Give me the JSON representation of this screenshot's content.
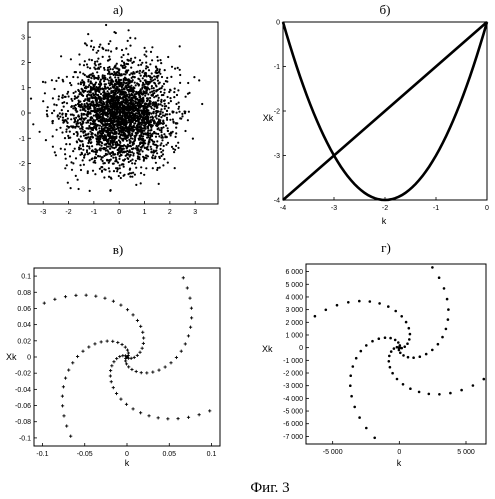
{
  "figure": {
    "caption": "Фиг. 3"
  },
  "chart_data": [
    {
      "id": "a",
      "panel_label": "а)",
      "type": "scatter",
      "xlim": [
        -3.6,
        3.9
      ],
      "ylim": [
        -3.6,
        3.6
      ],
      "xticks": [
        "-3",
        "-2",
        "-1",
        "0",
        "1",
        "2",
        "3"
      ],
      "xtick_values": [
        -3,
        -2,
        -1,
        0,
        1,
        2,
        3
      ],
      "yticks": [
        "3",
        "2",
        "1",
        "0",
        "-1",
        "-2",
        "-3"
      ],
      "ytick_values": [
        3,
        2,
        1,
        0,
        -1,
        -2,
        -3
      ],
      "xlabel": "",
      "ylabel": "",
      "distribution": "gaussian cloud centered at (0,0), std ≈ 1, ~3000 points",
      "point_count": 3000,
      "grid": false
    },
    {
      "id": "b",
      "panel_label": "б)",
      "type": "line",
      "xlim": [
        -4,
        0
      ],
      "ylim": [
        -4,
        0
      ],
      "xticks": [
        "-4",
        "-3",
        "-2",
        "-1",
        "0"
      ],
      "xtick_values": [
        -4,
        -3,
        -2,
        -1,
        0
      ],
      "yticks": [
        "0",
        "-1",
        "-2",
        "-3",
        "-4"
      ],
      "ytick_values": [
        0,
        -1,
        -2,
        -3,
        -4
      ],
      "xlabel": "k",
      "ylabel": "Xk",
      "series": [
        {
          "points": [
            [
              -4,
              -4
            ],
            [
              0,
              0
            ]
          ]
        },
        {
          "points": [
            [
              -4,
              0
            ],
            [
              -3.5,
              -1.75
            ],
            [
              -3,
              -3
            ],
            [
              -2.5,
              -3.75
            ],
            [
              -2,
              -4
            ],
            [
              -1.5,
              -3.75
            ],
            [
              -1,
              -3
            ],
            [
              -0.5,
              -1.75
            ],
            [
              0,
              0
            ]
          ]
        }
      ],
      "grid": false
    },
    {
      "id": "v",
      "panel_label": "в)",
      "type": "scatter",
      "xlim": [
        -0.11,
        0.11
      ],
      "ylim": [
        -0.11,
        0.11
      ],
      "xticks": [
        "-0.1",
        "-0.05",
        "0",
        "0.05",
        "0.1"
      ],
      "xtick_values": [
        -0.1,
        -0.05,
        0,
        0.05,
        0.1
      ],
      "yticks": [
        "0.1",
        "0.08",
        "0.06",
        "0.04",
        "0.02",
        "0",
        "-0.02",
        "-0.04",
        "-0.06",
        "-0.08",
        "-0.1"
      ],
      "ytick_values": [
        0.1,
        0.08,
        0.06,
        0.04,
        0.02,
        0,
        -0.02,
        -0.04,
        -0.06,
        -0.08,
        -0.1
      ],
      "xlabel": "k",
      "ylabel": "Xk",
      "spiral": {
        "arms": 4,
        "r_max": 0.14,
        "rotation": 0.2,
        "points_per_arm": 26
      },
      "grid": false
    },
    {
      "id": "g",
      "panel_label": "г)",
      "type": "scatter",
      "xlim": [
        -7000,
        6500
      ],
      "ylim": [
        -7600,
        6600
      ],
      "xticks": [
        "-5 000",
        "0",
        "5 000"
      ],
      "xtick_values": [
        -5000,
        0,
        5000
      ],
      "yticks": [
        "6 000",
        "5 000",
        "4 000",
        "3 000",
        "2 000",
        "1 000",
        "0",
        "-1 000",
        "-2 000",
        "-3 000",
        "-4 000",
        "-5 000",
        "-6 000",
        "-7 000"
      ],
      "ytick_values": [
        6000,
        5000,
        4000,
        3000,
        2000,
        1000,
        0,
        -1000,
        -2000,
        -3000,
        -4000,
        -5000,
        -6000,
        -7000
      ],
      "xlabel": "k",
      "ylabel": "Xk",
      "spiral": {
        "arms": 4,
        "r_max": 9000,
        "rotation": 0.6,
        "points_per_arm": 22
      },
      "grid": false
    }
  ]
}
